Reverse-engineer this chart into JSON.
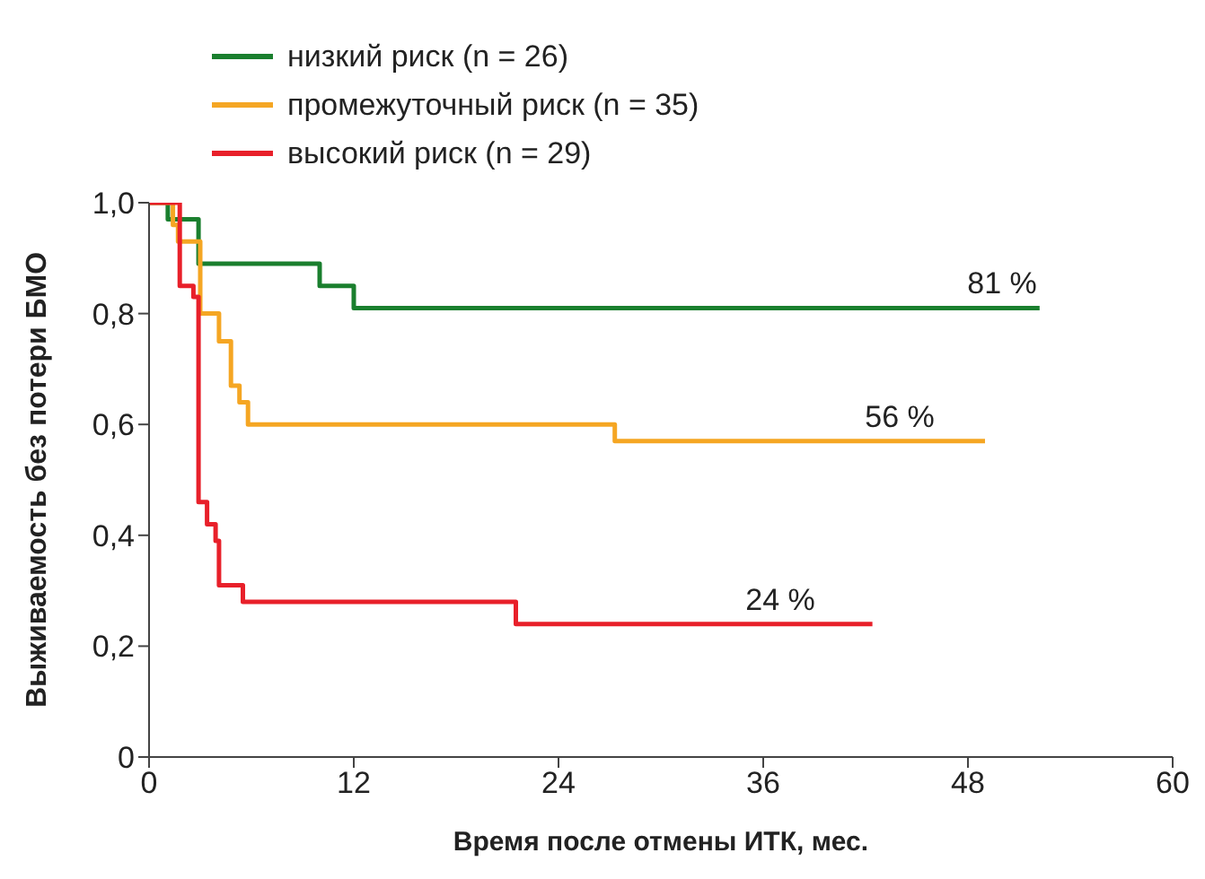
{
  "chart_data": {
    "type": "step",
    "xlabel": "Время после отмены ИТК, мес.",
    "ylabel": "Выживаемость без потери БМО",
    "series": [
      {
        "name": "низкий риск (n = 26)",
        "color": "#1a7f2e",
        "x": [
          0,
          1.1,
          2.9,
          10,
          12,
          52.2
        ],
        "values": [
          1,
          0.97,
          0.89,
          0.85,
          0.81,
          0.81
        ]
      },
      {
        "name": "промежуточный риск (n = 35)",
        "color": "#f5a623",
        "x": [
          0,
          1.4,
          1.7,
          3,
          4.1,
          4.8,
          5.3,
          5.8,
          27.3,
          49
        ],
        "values": [
          1,
          0.96,
          0.93,
          0.8,
          0.75,
          0.67,
          0.64,
          0.6,
          0.57,
          0.57
        ]
      },
      {
        "name": "высокий риск (n = 29)",
        "color": "#e8202a",
        "x": [
          0,
          1.8,
          2.6,
          2.9,
          3.4,
          3.9,
          4.1,
          5.5,
          21.5,
          42.4
        ],
        "values": [
          1,
          0.85,
          0.83,
          0.46,
          0.42,
          0.39,
          0.31,
          0.28,
          0.24,
          0.24
        ]
      }
    ],
    "xlim": [
      0,
      60
    ],
    "xticks": [
      0,
      12,
      24,
      36,
      48,
      60
    ],
    "ylim": [
      0,
      1
    ],
    "yticks": [
      0,
      {
        "value": 0.2,
        "label": "0,2"
      },
      {
        "value": 0.4,
        "label": "0,4"
      },
      {
        "value": 0.6,
        "label": "0,6"
      },
      {
        "value": 0.8,
        "label": "0,8"
      },
      {
        "value": 1,
        "label": "1,0"
      }
    ],
    "annotations": [
      {
        "text": "81 %",
        "x": 50,
        "y": 0.81
      },
      {
        "text": "56 %",
        "x": 44,
        "y": 0.57
      },
      {
        "text": "24 %",
        "x": 37,
        "y": 0.24
      }
    ],
    "legend": "top left",
    "grid": false
  }
}
